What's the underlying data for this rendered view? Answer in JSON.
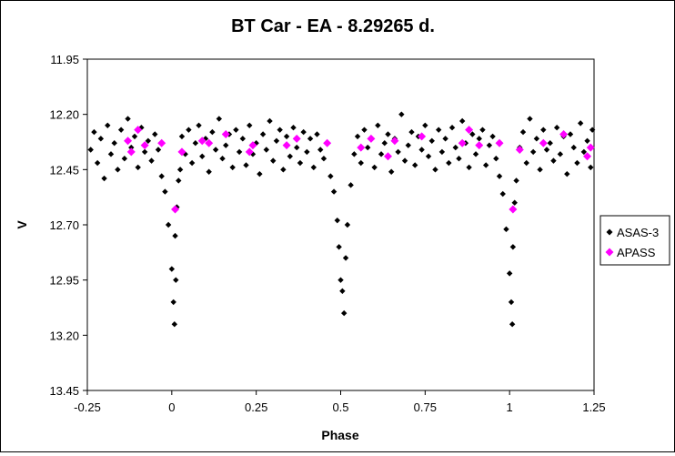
{
  "chart_data": {
    "type": "scatter",
    "title": "BT Car - EA - 8.29265 d.",
    "xlabel": "Phase",
    "ylabel": "V",
    "xlim": [
      -0.25,
      1.25
    ],
    "ylim": [
      11.95,
      13.45
    ],
    "y_reversed": true,
    "x_ticks": [
      -0.25,
      0,
      0.25,
      0.5,
      0.75,
      1,
      1.25
    ],
    "x_tick_labels": [
      "-0.25",
      "0",
      "0.25",
      "0.5",
      "0.75",
      "1",
      "1.25"
    ],
    "y_ticks": [
      11.95,
      12.2,
      12.45,
      12.7,
      12.95,
      13.2,
      13.45
    ],
    "y_tick_labels": [
      "11.95",
      "12.20",
      "12.45",
      "12.70",
      "12.95",
      "13.20",
      "13.45"
    ],
    "grid": false,
    "legend_position": "right",
    "colors": {
      "ASAS-3": "#000000",
      "APASS": "#ff00ff"
    },
    "series": [
      {
        "name": "ASAS-3",
        "marker": "diamond",
        "points": [
          [
            -0.24,
            12.36
          ],
          [
            -0.23,
            12.28
          ],
          [
            -0.22,
            12.42
          ],
          [
            -0.21,
            12.31
          ],
          [
            -0.2,
            12.49
          ],
          [
            -0.19,
            12.25
          ],
          [
            -0.18,
            12.38
          ],
          [
            -0.17,
            12.33
          ],
          [
            -0.16,
            12.45
          ],
          [
            -0.15,
            12.27
          ],
          [
            -0.14,
            12.4
          ],
          [
            -0.13,
            12.22
          ],
          [
            -0.12,
            12.35
          ],
          [
            -0.11,
            12.3
          ],
          [
            -0.1,
            12.44
          ],
          [
            -0.09,
            12.26
          ],
          [
            -0.08,
            12.37
          ],
          [
            -0.07,
            12.32
          ],
          [
            -0.06,
            12.41
          ],
          [
            -0.05,
            12.29
          ],
          [
            -0.04,
            12.36
          ],
          [
            -0.03,
            12.48
          ],
          [
            -0.02,
            12.55
          ],
          [
            -0.01,
            12.7
          ],
          [
            0.0,
            12.9
          ],
          [
            0.005,
            13.05
          ],
          [
            0.008,
            13.15
          ],
          [
            0.01,
            12.75
          ],
          [
            0.012,
            12.95
          ],
          [
            0.015,
            12.62
          ],
          [
            0.02,
            12.5
          ],
          [
            0.025,
            12.45
          ],
          [
            0.03,
            12.3
          ],
          [
            0.04,
            12.38
          ],
          [
            0.05,
            12.27
          ],
          [
            0.06,
            12.42
          ],
          [
            0.07,
            12.33
          ],
          [
            0.08,
            12.25
          ],
          [
            0.09,
            12.39
          ],
          [
            0.1,
            12.31
          ],
          [
            0.11,
            12.46
          ],
          [
            0.12,
            12.28
          ],
          [
            0.13,
            12.36
          ],
          [
            0.14,
            12.22
          ],
          [
            0.15,
            12.4
          ],
          [
            0.16,
            12.34
          ],
          [
            0.17,
            12.29
          ],
          [
            0.18,
            12.44
          ],
          [
            0.19,
            12.27
          ],
          [
            0.2,
            12.37
          ],
          [
            0.21,
            12.31
          ],
          [
            0.22,
            12.43
          ],
          [
            0.23,
            12.25
          ],
          [
            0.24,
            12.38
          ],
          [
            0.25,
            12.33
          ],
          [
            0.26,
            12.47
          ],
          [
            0.27,
            12.29
          ],
          [
            0.28,
            12.36
          ],
          [
            0.29,
            12.23
          ],
          [
            0.3,
            12.41
          ],
          [
            0.31,
            12.32
          ],
          [
            0.32,
            12.27
          ],
          [
            0.33,
            12.45
          ],
          [
            0.34,
            12.3
          ],
          [
            0.35,
            12.39
          ],
          [
            0.36,
            12.26
          ],
          [
            0.37,
            12.35
          ],
          [
            0.38,
            12.42
          ],
          [
            0.39,
            12.28
          ],
          [
            0.4,
            12.37
          ],
          [
            0.41,
            12.31
          ],
          [
            0.42,
            12.44
          ],
          [
            0.43,
            12.29
          ],
          [
            0.44,
            12.36
          ],
          [
            0.45,
            12.4
          ],
          [
            0.46,
            12.33
          ],
          [
            0.47,
            12.48
          ],
          [
            0.48,
            12.55
          ],
          [
            0.49,
            12.68
          ],
          [
            0.495,
            12.8
          ],
          [
            0.5,
            12.95
          ],
          [
            0.505,
            13.0
          ],
          [
            0.51,
            13.1
          ],
          [
            0.515,
            12.85
          ],
          [
            0.52,
            12.7
          ],
          [
            0.53,
            12.52
          ],
          [
            0.54,
            12.38
          ],
          [
            0.55,
            12.3
          ],
          [
            0.56,
            12.42
          ],
          [
            0.57,
            12.27
          ],
          [
            0.58,
            12.35
          ],
          [
            0.59,
            12.31
          ],
          [
            0.6,
            12.44
          ],
          [
            0.61,
            12.25
          ],
          [
            0.62,
            12.38
          ],
          [
            0.63,
            12.33
          ],
          [
            0.64,
            12.29
          ],
          [
            0.65,
            12.46
          ],
          [
            0.66,
            12.31
          ],
          [
            0.67,
            12.37
          ],
          [
            0.68,
            12.2
          ],
          [
            0.69,
            12.41
          ],
          [
            0.7,
            12.34
          ],
          [
            0.71,
            12.28
          ],
          [
            0.72,
            12.43
          ],
          [
            0.73,
            12.3
          ],
          [
            0.74,
            12.36
          ],
          [
            0.75,
            12.25
          ],
          [
            0.76,
            12.39
          ],
          [
            0.77,
            12.32
          ],
          [
            0.78,
            12.45
          ],
          [
            0.79,
            12.27
          ],
          [
            0.8,
            12.37
          ],
          [
            0.81,
            12.31
          ],
          [
            0.82,
            12.42
          ],
          [
            0.83,
            12.26
          ],
          [
            0.84,
            12.35
          ],
          [
            0.85,
            12.4
          ],
          [
            0.86,
            12.23
          ],
          [
            0.87,
            12.33
          ],
          [
            0.88,
            12.44
          ],
          [
            0.89,
            12.29
          ],
          [
            0.9,
            12.38
          ],
          [
            0.91,
            12.31
          ],
          [
            0.92,
            12.27
          ],
          [
            0.93,
            12.43
          ],
          [
            0.94,
            12.34
          ],
          [
            0.95,
            12.3
          ],
          [
            0.96,
            12.4
          ],
          [
            0.97,
            12.48
          ],
          [
            0.98,
            12.56
          ],
          [
            0.99,
            12.72
          ],
          [
            1.0,
            12.92
          ],
          [
            1.005,
            13.05
          ],
          [
            1.008,
            13.15
          ],
          [
            1.01,
            12.8
          ],
          [
            1.015,
            12.6
          ],
          [
            1.02,
            12.5
          ],
          [
            1.03,
            12.35
          ],
          [
            1.04,
            12.28
          ],
          [
            1.05,
            12.42
          ],
          [
            1.06,
            12.22
          ],
          [
            1.07,
            12.37
          ],
          [
            1.08,
            12.31
          ],
          [
            1.09,
            12.45
          ],
          [
            1.1,
            12.27
          ],
          [
            1.11,
            12.36
          ],
          [
            1.12,
            12.33
          ],
          [
            1.13,
            12.41
          ],
          [
            1.14,
            12.26
          ],
          [
            1.15,
            12.38
          ],
          [
            1.16,
            12.3
          ],
          [
            1.17,
            12.47
          ],
          [
            1.18,
            12.29
          ],
          [
            1.19,
            12.35
          ],
          [
            1.2,
            12.42
          ],
          [
            1.21,
            12.24
          ],
          [
            1.22,
            12.37
          ],
          [
            1.23,
            12.32
          ],
          [
            1.24,
            12.44
          ],
          [
            1.245,
            12.27
          ]
        ]
      },
      {
        "name": "APASS",
        "marker": "diamond",
        "points": [
          [
            -0.13,
            12.32
          ],
          [
            -0.12,
            12.37
          ],
          [
            -0.1,
            12.27
          ],
          [
            -0.08,
            12.34
          ],
          [
            -0.03,
            12.33
          ],
          [
            0.01,
            12.63
          ],
          [
            0.03,
            12.37
          ],
          [
            0.09,
            12.32
          ],
          [
            0.11,
            12.33
          ],
          [
            0.16,
            12.29
          ],
          [
            0.23,
            12.37
          ],
          [
            0.24,
            12.34
          ],
          [
            0.34,
            12.34
          ],
          [
            0.37,
            12.31
          ],
          [
            0.46,
            12.33
          ],
          [
            0.56,
            12.35
          ],
          [
            0.59,
            12.31
          ],
          [
            0.64,
            12.39
          ],
          [
            0.66,
            12.32
          ],
          [
            0.74,
            12.3
          ],
          [
            0.86,
            12.33
          ],
          [
            0.88,
            12.27
          ],
          [
            0.91,
            12.34
          ],
          [
            0.97,
            12.33
          ],
          [
            1.01,
            12.63
          ],
          [
            1.03,
            12.36
          ],
          [
            1.1,
            12.33
          ],
          [
            1.16,
            12.29
          ],
          [
            1.23,
            12.39
          ],
          [
            1.24,
            12.35
          ]
        ]
      }
    ]
  }
}
